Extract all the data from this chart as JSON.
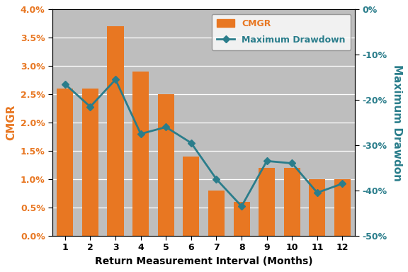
{
  "months": [
    1,
    2,
    3,
    4,
    5,
    6,
    7,
    8,
    9,
    10,
    11,
    12
  ],
  "cmgr": [
    0.026,
    0.026,
    0.037,
    0.029,
    0.025,
    0.014,
    0.008,
    0.006,
    0.012,
    0.012,
    0.01,
    0.01
  ],
  "max_drawdown": [
    -0.165,
    -0.215,
    -0.155,
    -0.275,
    -0.26,
    -0.295,
    -0.375,
    -0.435,
    -0.335,
    -0.34,
    -0.405,
    -0.385
  ],
  "bar_color": "#E87722",
  "line_color": "#2A7D8B",
  "background_color": "#BEBEBE",
  "figure_color": "#FFFFFF",
  "xlabel": "Return Measurement Interval (Months)",
  "ylabel_left": "CMGR",
  "ylabel_right": "Maximum Drawdon",
  "ylim_left": [
    0.0,
    0.04
  ],
  "ylim_right": [
    -0.5,
    0.0
  ],
  "yticks_left": [
    0.0,
    0.005,
    0.01,
    0.015,
    0.02,
    0.025,
    0.03,
    0.035,
    0.04
  ],
  "ytick_labels_left": [
    "0.0%",
    "0.5%",
    "1.0%",
    "1.5%",
    "2.0%",
    "2.5%",
    "3.0%",
    "3.5%",
    "4.0%"
  ],
  "yticks_right": [
    0.0,
    -0.1,
    -0.2,
    -0.3,
    -0.4,
    -0.5
  ],
  "ytick_labels_right": [
    "0%",
    "-10%",
    "-20%",
    "-30%",
    "-40%",
    "-50%"
  ],
  "legend_cmgr": "CMGR",
  "legend_dd": "Maximum Drawdown",
  "ylabel_left_color": "#E87722",
  "ylabel_right_color": "#2A7D8B",
  "tick_label_left_color": "#E87722",
  "tick_label_right_color": "#2A7D8B",
  "xlabel_color": "#000000",
  "figsize": [
    5.76,
    3.84
  ],
  "dpi": 100
}
